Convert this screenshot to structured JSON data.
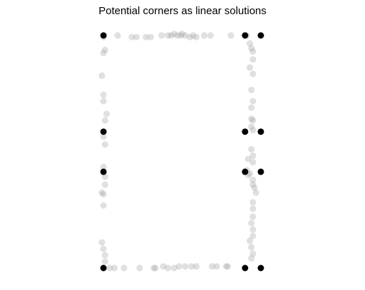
{
  "chart_data": {
    "type": "scatter",
    "title": "Potential corners as linear solutions",
    "xlabel": "",
    "ylabel": "",
    "axes_visible": false,
    "grid": false,
    "xlim": [
      0,
      1
    ],
    "ylim": [
      0,
      1.5
    ],
    "series": [
      {
        "role": "candidates",
        "color": "#999999",
        "opacity": 0.3,
        "points": [
          [
            0.0,
            1.44
          ],
          [
            0.01,
            1.36
          ],
          [
            0.0,
            1.34
          ],
          [
            0.09,
            1.45
          ],
          [
            0.18,
            1.44
          ],
          [
            0.21,
            1.44
          ],
          [
            0.27,
            1.44
          ],
          [
            0.3,
            1.44
          ],
          [
            0.37,
            1.45
          ],
          [
            0.41,
            1.45
          ],
          [
            0.43,
            1.45
          ],
          [
            0.45,
            1.46
          ],
          [
            0.47,
            1.45
          ],
          [
            0.49,
            1.45
          ],
          [
            0.5,
            1.46
          ],
          [
            0.52,
            1.45
          ],
          [
            0.55,
            1.44
          ],
          [
            0.57,
            1.45
          ],
          [
            0.59,
            1.44
          ],
          [
            0.64,
            1.45
          ],
          [
            0.68,
            1.45
          ],
          [
            0.81,
            1.45
          ],
          [
            0.91,
            1.45
          ],
          [
            0.93,
            1.4
          ],
          [
            0.94,
            1.37
          ],
          [
            0.95,
            1.35
          ],
          [
            0.95,
            1.3
          ],
          [
            0.93,
            1.25
          ],
          [
            0.95,
            1.21
          ],
          [
            0.94,
            1.11
          ],
          [
            0.95,
            1.04
          ],
          [
            0.94,
            1.0
          ],
          [
            0.94,
            0.93
          ],
          [
            0.95,
            0.92
          ],
          [
            0.94,
            0.88
          ],
          [
            0.95,
            0.86
          ],
          [
            0.94,
            0.74
          ],
          [
            0.95,
            0.7
          ],
          [
            0.95,
            0.66
          ],
          [
            0.92,
            0.68
          ],
          [
            0.91,
            0.61
          ],
          [
            0.92,
            0.58
          ],
          [
            0.93,
            0.59
          ],
          [
            0.95,
            0.55
          ],
          [
            0.95,
            0.52
          ],
          [
            0.96,
            0.5
          ],
          [
            0.97,
            0.47
          ],
          [
            0.95,
            0.41
          ],
          [
            0.95,
            0.37
          ],
          [
            0.95,
            0.32
          ],
          [
            0.94,
            0.28
          ],
          [
            0.95,
            0.24
          ],
          [
            0.95,
            0.2
          ],
          [
            0.93,
            0.17
          ],
          [
            0.94,
            0.13
          ],
          [
            0.95,
            0.09
          ],
          [
            0.94,
            0.06
          ],
          [
            -0.01,
            1.2
          ],
          [
            0.0,
            1.08
          ],
          [
            0.0,
            1.04
          ],
          [
            0.02,
            0.96
          ],
          [
            0.01,
            0.92
          ],
          [
            0.0,
            0.82
          ],
          [
            0.01,
            0.77
          ],
          [
            0.0,
            0.63
          ],
          [
            0.01,
            0.57
          ],
          [
            0.01,
            0.52
          ],
          [
            -0.01,
            0.47
          ],
          [
            0.0,
            0.46
          ],
          [
            0.0,
            0.39
          ],
          [
            -0.01,
            0.16
          ],
          [
            0.0,
            0.12
          ],
          [
            0.01,
            0.08
          ],
          [
            0.01,
            0.04
          ],
          [
            0.04,
            0.0
          ],
          [
            0.07,
            0.0
          ],
          [
            0.13,
            0.0
          ],
          [
            0.23,
            0.0
          ],
          [
            0.32,
            0.0
          ],
          [
            0.33,
            0.0
          ],
          [
            0.38,
            0.01
          ],
          [
            0.41,
            0.0
          ],
          [
            0.45,
            0.0
          ],
          [
            0.48,
            0.01
          ],
          [
            0.52,
            0.01
          ],
          [
            0.56,
            0.01
          ],
          [
            0.59,
            0.01
          ],
          [
            0.69,
            0.01
          ],
          [
            0.72,
            0.01
          ],
          [
            0.78,
            0.01
          ],
          [
            0.79,
            0.01
          ]
        ]
      },
      {
        "role": "corners",
        "color": "#000000",
        "opacity": 1,
        "points": [
          [
            0.0,
            1.45
          ],
          [
            0.9,
            1.45
          ],
          [
            1.0,
            1.45
          ],
          [
            0.0,
            0.85
          ],
          [
            0.9,
            0.85
          ],
          [
            1.0,
            0.85
          ],
          [
            0.0,
            0.6
          ],
          [
            0.9,
            0.6
          ],
          [
            1.0,
            0.6
          ],
          [
            0.0,
            0.0
          ],
          [
            0.9,
            0.0
          ],
          [
            1.0,
            0.0
          ]
        ]
      }
    ]
  }
}
